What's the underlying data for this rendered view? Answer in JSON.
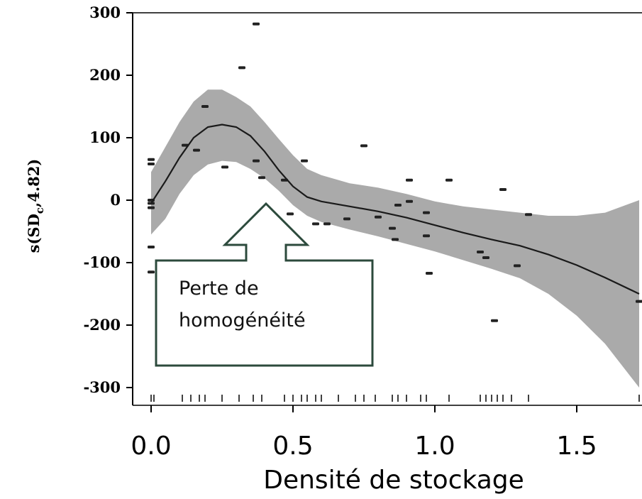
{
  "chart_data": {
    "type": "scatter",
    "xlabel": "Densité de stockage",
    "ylabel_main": "s(SD",
    "ylabel_sub": "c",
    "ylabel_tail": ",4.82)",
    "xlim": [
      0.0,
      1.72
    ],
    "ylim": [
      -300,
      300
    ],
    "x_ticks": [
      0.0,
      0.5,
      1.0,
      1.5
    ],
    "x_tick_labels": [
      "0.0",
      "0.5",
      "1.0",
      "1.5"
    ],
    "y_ticks": [
      300,
      200,
      100,
      0,
      -100,
      -200,
      -300
    ],
    "y_tick_labels": [
      "300",
      "200",
      "100",
      "0",
      "-100",
      "-200",
      "-300"
    ],
    "grid": false,
    "smooth_fit": {
      "x": [
        0.0,
        0.05,
        0.1,
        0.15,
        0.2,
        0.25,
        0.3,
        0.35,
        0.4,
        0.45,
        0.5,
        0.55,
        0.6,
        0.7,
        0.8,
        0.9,
        1.0,
        1.1,
        1.2,
        1.3,
        1.4,
        1.5,
        1.6,
        1.72
      ],
      "y": [
        -5,
        30,
        68,
        100,
        117,
        121,
        117,
        103,
        78,
        48,
        22,
        5,
        -2,
        -10,
        -18,
        -28,
        -40,
        -52,
        -63,
        -73,
        -87,
        -104,
        -124,
        -150
      ],
      "lower": [
        -55,
        -30,
        10,
        40,
        57,
        63,
        61,
        50,
        35,
        15,
        -8,
        -25,
        -35,
        -47,
        -58,
        -70,
        -82,
        -96,
        -110,
        -125,
        -150,
        -185,
        -230,
        -300
      ],
      "upper": [
        45,
        85,
        125,
        158,
        177,
        177,
        165,
        150,
        125,
        98,
        72,
        50,
        40,
        27,
        20,
        10,
        -2,
        -10,
        -15,
        -20,
        -25,
        -25,
        -20,
        0
      ]
    },
    "points": [
      {
        "x": 0.0,
        "y": 65
      },
      {
        "x": 0.0,
        "y": 58
      },
      {
        "x": 0.0,
        "y": 0
      },
      {
        "x": 0.0,
        "y": -5
      },
      {
        "x": 0.0,
        "y": -12
      },
      {
        "x": 0.0,
        "y": -75
      },
      {
        "x": 0.0,
        "y": -115
      },
      {
        "x": 0.12,
        "y": 88
      },
      {
        "x": 0.16,
        "y": 80
      },
      {
        "x": 0.19,
        "y": 150
      },
      {
        "x": 0.26,
        "y": 53
      },
      {
        "x": 0.32,
        "y": 212
      },
      {
        "x": 0.37,
        "y": 282
      },
      {
        "x": 0.37,
        "y": 63
      },
      {
        "x": 0.39,
        "y": 36
      },
      {
        "x": 0.47,
        "y": 32
      },
      {
        "x": 0.49,
        "y": -22
      },
      {
        "x": 0.54,
        "y": 63
      },
      {
        "x": 0.58,
        "y": -38
      },
      {
        "x": 0.62,
        "y": -38
      },
      {
        "x": 0.69,
        "y": -30
      },
      {
        "x": 0.75,
        "y": 87
      },
      {
        "x": 0.8,
        "y": -27
      },
      {
        "x": 0.85,
        "y": -45
      },
      {
        "x": 0.86,
        "y": -63
      },
      {
        "x": 0.87,
        "y": -8
      },
      {
        "x": 0.91,
        "y": 32
      },
      {
        "x": 0.91,
        "y": -2
      },
      {
        "x": 0.97,
        "y": -20
      },
      {
        "x": 0.97,
        "y": -57
      },
      {
        "x": 0.98,
        "y": -117
      },
      {
        "x": 1.05,
        "y": 32
      },
      {
        "x": 1.16,
        "y": -83
      },
      {
        "x": 1.18,
        "y": -92
      },
      {
        "x": 1.21,
        "y": -193
      },
      {
        "x": 1.24,
        "y": 17
      },
      {
        "x": 1.29,
        "y": -105
      },
      {
        "x": 1.33,
        "y": -23
      },
      {
        "x": 1.72,
        "y": -162
      }
    ],
    "rug": [
      0.0,
      0.01,
      0.11,
      0.14,
      0.17,
      0.19,
      0.25,
      0.31,
      0.36,
      0.39,
      0.47,
      0.5,
      0.53,
      0.55,
      0.58,
      0.6,
      0.66,
      0.72,
      0.75,
      0.79,
      0.85,
      0.87,
      0.9,
      0.95,
      0.97,
      1.05,
      1.16,
      1.18,
      1.2,
      1.22,
      1.24,
      1.27,
      1.33,
      1.72
    ],
    "colors": {
      "band": "#aaaaaa",
      "line": "#1a1a1a",
      "point": "#222222",
      "callout_border": "#2c4a3c"
    }
  },
  "annotation": {
    "line1": "Perte de",
    "line2": "homogénéité"
  }
}
